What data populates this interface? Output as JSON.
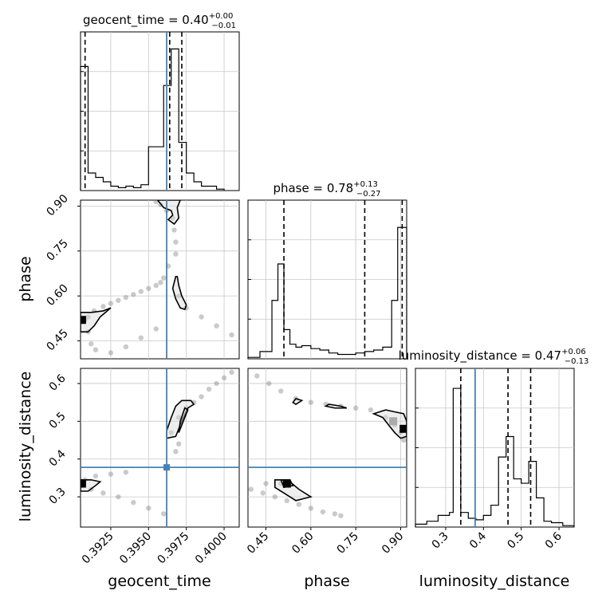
{
  "colors": {
    "truth": "#4682b4",
    "hist": "#000000",
    "grid": "#c8c8c8",
    "quantile": "#000000",
    "density": "#666666"
  },
  "chart_data": {
    "type": "corner",
    "parameters": [
      "geocent_time",
      "phase",
      "luminosity_distance"
    ],
    "axis_labels": {
      "geocent_time": "geocent_time",
      "phase": "phase",
      "luminosity_distance": "luminosity_distance"
    },
    "titles": {
      "geocent_time": {
        "name": "geocent_time",
        "median": "0.40",
        "plus": "+0.00",
        "minus": "−0.01"
      },
      "phase": {
        "name": "phase",
        "median": "0.78",
        "plus": "+0.13",
        "minus": "−0.27"
      },
      "luminosity_distance": {
        "name": "luminosity_distance",
        "median": "0.47",
        "plus": "+0.06",
        "minus": "−0.13"
      }
    },
    "ranges": {
      "geocent_time": [
        0.3905,
        0.401
      ],
      "phase": [
        0.39,
        0.92
      ],
      "luminosity_distance": [
        0.22,
        0.64
      ]
    },
    "ticks": {
      "geocent_time": {
        "values": [
          0.3925,
          0.395,
          0.3975,
          0.4
        ],
        "labels": [
          "0.3925",
          "0.3950",
          "0.3975",
          "0.4000"
        ]
      },
      "phase": {
        "values": [
          0.45,
          0.6,
          0.75,
          0.9
        ],
        "labels": [
          "0.45",
          "0.60",
          "0.75",
          "0.90"
        ]
      },
      "luminosity_distance": {
        "values": [
          0.3,
          0.4,
          0.5,
          0.6
        ],
        "labels": [
          "0.3",
          "0.4",
          "0.5",
          "0.6"
        ]
      }
    },
    "truths": {
      "geocent_time": 0.3962,
      "phase": null,
      "luminosity_distance": 0.378
    },
    "quantiles": {
      "geocent_time": [
        0.3908,
        0.3964,
        0.3972
      ],
      "phase": [
        0.51,
        0.78,
        0.905
      ],
      "luminosity_distance": [
        0.34,
        0.465,
        0.525
      ]
    },
    "histograms": {
      "geocent_time": {
        "edges": [
          0.3905,
          0.39075,
          0.391,
          0.39125,
          0.3915,
          0.39175,
          0.392,
          0.39225,
          0.3925,
          0.39275,
          0.393,
          0.39325,
          0.3935,
          0.39375,
          0.394,
          0.39425,
          0.3945,
          0.39475,
          0.395,
          0.39525,
          0.3955,
          0.39575,
          0.396,
          0.39625,
          0.3965,
          0.39675,
          0.397,
          0.39725,
          0.3975,
          0.39775,
          0.398,
          0.39825,
          0.3985,
          0.39875,
          0.399,
          0.39925,
          0.3995,
          0.39975,
          0.4
        ],
        "counts": [
          0.85,
          0.85,
          0.12,
          0.12,
          0.09,
          0.09,
          0.06,
          0.06,
          0.03,
          0.03,
          0.02,
          0.02,
          0.03,
          0.03,
          0.02,
          0.02,
          0.04,
          0.04,
          0.3,
          0.3,
          0.3,
          0.3,
          0.72,
          0.72,
          0.97,
          0.97,
          0.33,
          0.33,
          0.12,
          0.12,
          0.06,
          0.06,
          0.03,
          0.03,
          0.03,
          0.03,
          0.01,
          0.01
        ]
      },
      "phase": {
        "edges": [
          0.39,
          0.43,
          0.47,
          0.49,
          0.51,
          0.53,
          0.55,
          0.57,
          0.6,
          0.63,
          0.66,
          0.69,
          0.72,
          0.75,
          0.78,
          0.81,
          0.84,
          0.87,
          0.89,
          0.91,
          0.92
        ],
        "counts": [
          0.01,
          0.05,
          0.4,
          0.65,
          0.2,
          0.1,
          0.08,
          0.09,
          0.07,
          0.06,
          0.04,
          0.03,
          0.03,
          0.04,
          0.05,
          0.06,
          0.08,
          0.4,
          0.9,
          0.9
        ]
      },
      "luminosity_distance": {
        "edges": [
          0.22,
          0.25,
          0.28,
          0.31,
          0.32,
          0.34,
          0.36,
          0.38,
          0.4,
          0.42,
          0.44,
          0.46,
          0.48,
          0.5,
          0.52,
          0.54,
          0.56,
          0.58,
          0.61,
          0.64
        ],
        "counts": [
          0.02,
          0.04,
          0.08,
          0.1,
          0.95,
          0.1,
          0.06,
          0.05,
          0.08,
          0.15,
          0.48,
          0.62,
          0.33,
          0.3,
          0.45,
          0.2,
          0.04,
          0.03,
          0.01
        ]
      }
    },
    "pairs": [
      {
        "x": "geocent_time",
        "y": "phase",
        "samples": [
          [
            0.3908,
            0.52
          ],
          [
            0.391,
            0.53
          ],
          [
            0.3914,
            0.55
          ],
          [
            0.392,
            0.565
          ],
          [
            0.3925,
            0.575
          ],
          [
            0.393,
            0.585
          ],
          [
            0.3935,
            0.595
          ],
          [
            0.394,
            0.605
          ],
          [
            0.3945,
            0.615
          ],
          [
            0.395,
            0.625
          ],
          [
            0.3955,
            0.635
          ],
          [
            0.3958,
            0.645
          ],
          [
            0.396,
            0.66
          ],
          [
            0.3963,
            0.7
          ],
          [
            0.3968,
            0.74
          ],
          [
            0.3968,
            0.78
          ],
          [
            0.3967,
            0.82
          ],
          [
            0.3966,
            0.86
          ],
          [
            0.3962,
            0.885
          ],
          [
            0.3958,
            0.905
          ],
          [
            0.3955,
            0.915
          ],
          [
            0.397,
            0.6
          ],
          [
            0.3975,
            0.56
          ],
          [
            0.3985,
            0.53
          ],
          [
            0.3995,
            0.5
          ],
          [
            0.4005,
            0.47
          ],
          [
            0.391,
            0.48
          ],
          [
            0.3912,
            0.44
          ],
          [
            0.3915,
            0.42
          ],
          [
            0.3925,
            0.41
          ],
          [
            0.3935,
            0.43
          ],
          [
            0.3945,
            0.46
          ],
          [
            0.3955,
            0.49
          ]
        ],
        "contours": [
          [
            [
              0.3905,
              0.545
            ],
            [
              0.3912,
              0.545
            ],
            [
              0.392,
              0.55
            ],
            [
              0.3925,
              0.56
            ],
            [
              0.3918,
              0.53
            ],
            [
              0.3914,
              0.5
            ],
            [
              0.391,
              0.48
            ],
            [
              0.3905,
              0.48
            ]
          ],
          [
            [
              0.3956,
              0.92
            ],
            [
              0.396,
              0.895
            ],
            [
              0.3965,
              0.885
            ],
            [
              0.3966,
              0.87
            ],
            [
              0.3963,
              0.855
            ],
            [
              0.3967,
              0.84
            ],
            [
              0.397,
              0.86
            ],
            [
              0.3969,
              0.895
            ],
            [
              0.3971,
              0.92
            ]
          ],
          [
            [
              0.3968,
              0.665
            ],
            [
              0.3966,
              0.625
            ],
            [
              0.3968,
              0.59
            ],
            [
              0.3971,
              0.56
            ],
            [
              0.3974,
              0.555
            ],
            [
              0.3975,
              0.57
            ],
            [
              0.3972,
              0.6
            ],
            [
              0.397,
              0.635
            ],
            [
              0.3969,
              0.665
            ]
          ]
        ],
        "mode": [
          0.3906,
          0.52
        ]
      },
      {
        "x": "geocent_time",
        "y": "luminosity_distance",
        "samples": [
          [
            0.3906,
            0.33
          ],
          [
            0.3912,
            0.32
          ],
          [
            0.392,
            0.31
          ],
          [
            0.393,
            0.3
          ],
          [
            0.394,
            0.285
          ],
          [
            0.395,
            0.27
          ],
          [
            0.396,
            0.255
          ],
          [
            0.3908,
            0.345
          ],
          [
            0.3915,
            0.355
          ],
          [
            0.3925,
            0.36
          ],
          [
            0.3935,
            0.365
          ],
          [
            0.3965,
            0.47
          ],
          [
            0.397,
            0.51
          ],
          [
            0.3975,
            0.535
          ],
          [
            0.398,
            0.55
          ],
          [
            0.3985,
            0.565
          ],
          [
            0.399,
            0.585
          ],
          [
            0.3995,
            0.6
          ],
          [
            0.4,
            0.615
          ],
          [
            0.4005,
            0.63
          ],
          [
            0.3968,
            0.42
          ],
          [
            0.397,
            0.44
          ]
        ],
        "contours": [
          [
            [
              0.3905,
              0.345
            ],
            [
              0.3912,
              0.345
            ],
            [
              0.3918,
              0.34
            ],
            [
              0.3915,
              0.33
            ],
            [
              0.391,
              0.315
            ],
            [
              0.3905,
              0.315
            ]
          ],
          [
            [
              0.3962,
              0.475
            ],
            [
              0.3962,
              0.455
            ],
            [
              0.3968,
              0.46
            ],
            [
              0.3972,
              0.5
            ],
            [
              0.3976,
              0.535
            ],
            [
              0.398,
              0.545
            ],
            [
              0.3978,
              0.555
            ],
            [
              0.3972,
              0.555
            ],
            [
              0.3968,
              0.54
            ],
            [
              0.3965,
              0.51
            ]
          ],
          [
            [
              0.397,
              0.47
            ],
            [
              0.3971,
              0.5
            ],
            [
              0.3974,
              0.535
            ],
            [
              0.3976,
              0.53
            ],
            [
              0.3972,
              0.49
            ]
          ]
        ],
        "mode": [
          0.3906,
          0.335
        ]
      },
      {
        "x": "phase",
        "y": "luminosity_distance",
        "samples": [
          [
            0.42,
            0.62
          ],
          [
            0.46,
            0.6
          ],
          [
            0.5,
            0.58
          ],
          [
            0.55,
            0.56
          ],
          [
            0.6,
            0.55
          ],
          [
            0.65,
            0.545
          ],
          [
            0.7,
            0.54
          ],
          [
            0.75,
            0.535
          ],
          [
            0.8,
            0.53
          ],
          [
            0.85,
            0.51
          ],
          [
            0.88,
            0.49
          ],
          [
            0.9,
            0.47
          ],
          [
            0.91,
            0.45
          ],
          [
            0.4,
            0.32
          ],
          [
            0.44,
            0.31
          ],
          [
            0.48,
            0.3
          ],
          [
            0.52,
            0.29
          ],
          [
            0.56,
            0.28
          ],
          [
            0.6,
            0.27
          ],
          [
            0.64,
            0.26
          ],
          [
            0.68,
            0.255
          ],
          [
            0.7,
            0.25
          ],
          [
            0.45,
            0.335
          ],
          [
            0.5,
            0.335
          ],
          [
            0.52,
            0.335
          ]
        ],
        "contours": [
          [
            [
              0.48,
              0.345
            ],
            [
              0.5,
              0.345
            ],
            [
              0.53,
              0.34
            ],
            [
              0.56,
              0.32
            ],
            [
              0.6,
              0.3
            ],
            [
              0.55,
              0.29
            ],
            [
              0.51,
              0.31
            ],
            [
              0.48,
              0.325
            ]
          ],
          [
            [
              0.5,
              0.345
            ],
            [
              0.53,
              0.345
            ],
            [
              0.54,
              0.33
            ],
            [
              0.51,
              0.325
            ]
          ],
          [
            [
              0.81,
              0.52
            ],
            [
              0.84,
              0.51
            ],
            [
              0.86,
              0.49
            ],
            [
              0.88,
              0.47
            ],
            [
              0.9,
              0.455
            ],
            [
              0.92,
              0.46
            ],
            [
              0.92,
              0.5
            ],
            [
              0.91,
              0.52
            ],
            [
              0.88,
              0.525
            ],
            [
              0.85,
              0.53
            ]
          ],
          [
            [
              0.55,
              0.56
            ],
            [
              0.57,
              0.555
            ],
            [
              0.55,
              0.545
            ],
            [
              0.54,
              0.55
            ]
          ],
          [
            [
              0.65,
              0.54
            ],
            [
              0.68,
              0.535
            ],
            [
              0.72,
              0.535
            ],
            [
              0.7,
              0.54
            ],
            [
              0.66,
              0.545
            ]
          ]
        ],
        "modes": [
          [
            0.52,
            0.335
          ],
          [
            0.91,
            0.48
          ],
          [
            0.875,
            0.5
          ]
        ]
      }
    ]
  }
}
